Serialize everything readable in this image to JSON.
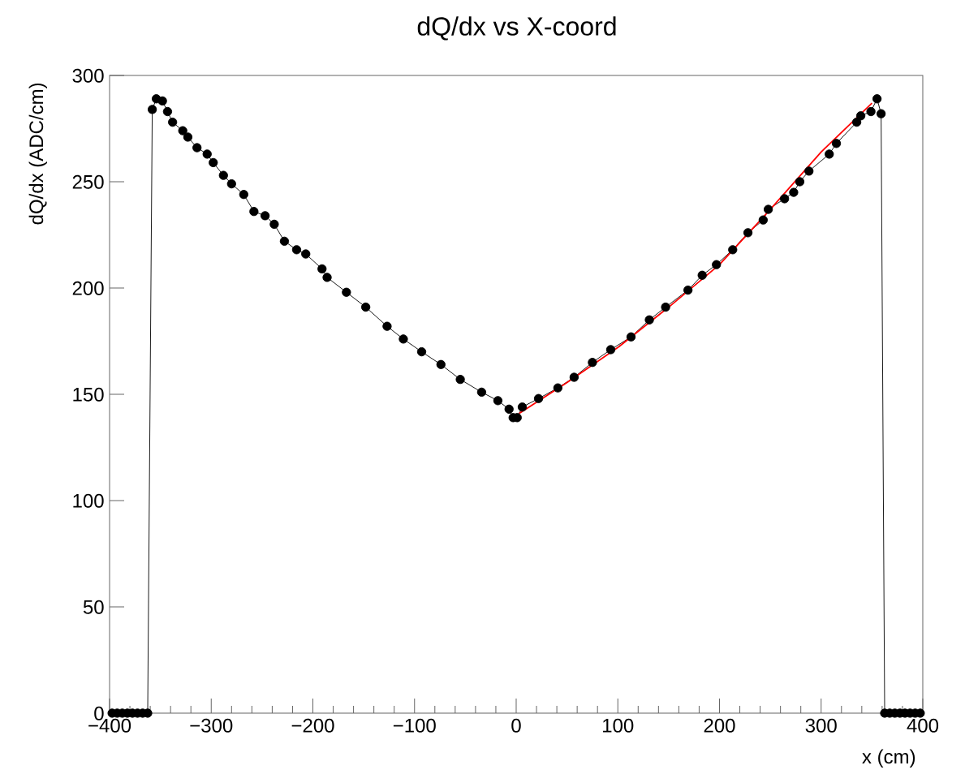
{
  "chart_data": {
    "type": "line",
    "title": "dQ/dx vs X-coord",
    "xlabel": "x (cm)",
    "ylabel": "dQ/dx (ADC/cm)",
    "xlim": [
      -400,
      400
    ],
    "ylim": [
      0,
      300
    ],
    "xticks": [
      {
        "value": -400,
        "label": "−400"
      },
      {
        "value": -300,
        "label": "−300"
      },
      {
        "value": -200,
        "label": "−200"
      },
      {
        "value": -100,
        "label": "−100"
      },
      0,
      100,
      200,
      300,
      400
    ],
    "yticks": [
      0,
      50,
      100,
      150,
      200,
      250,
      300
    ],
    "marker": "circle",
    "grid": false,
    "series": [
      {
        "color": "#000000",
        "x": [
          -397.5,
          -392.5,
          -387.5,
          -382.5,
          -377.5,
          -372.5,
          -367.5,
          -362.5,
          -358,
          -354,
          -348,
          -343,
          -338,
          -328,
          -323,
          -314,
          -304,
          -298,
          -288,
          -280,
          -268,
          -258,
          -247,
          -238,
          -228,
          -216,
          -207,
          -191,
          -186,
          -167,
          -148,
          -127,
          -111,
          -93,
          -74,
          -55,
          -34,
          -18,
          -7,
          -3,
          1,
          6,
          22,
          41,
          57,
          75,
          93,
          113,
          131,
          147,
          169,
          183,
          197,
          213,
          228,
          243,
          248,
          264,
          273,
          279,
          288,
          308,
          315,
          335,
          339,
          349,
          355,
          359,
          362.5,
          367.5,
          372.5,
          377.5,
          382.5,
          387.5,
          392.5,
          397.5
        ],
        "values": [
          0,
          0,
          0,
          0,
          0,
          0,
          0,
          0,
          284,
          289,
          288,
          283,
          278,
          274,
          271,
          266,
          263,
          259,
          253,
          249,
          244,
          236,
          234,
          230,
          222,
          218,
          216,
          209,
          205,
          198,
          191,
          182,
          176,
          170,
          164,
          157,
          151,
          147,
          143,
          139,
          139,
          144,
          148,
          153,
          158,
          165,
          171,
          177,
          185,
          191,
          199,
          206,
          211,
          218,
          226,
          232,
          237,
          242,
          245,
          250,
          255,
          263,
          268,
          278,
          281,
          283,
          289,
          282,
          0,
          0,
          0,
          0,
          0,
          0,
          0,
          0
        ]
      },
      {
        "type": "line",
        "marker": "none",
        "color": "#ff0000",
        "x": [
          3,
          50,
          100,
          150,
          200,
          250,
          300,
          350
        ],
        "values": [
          141,
          155.5,
          172,
          191,
          211,
          237,
          264,
          287
        ]
      }
    ]
  }
}
